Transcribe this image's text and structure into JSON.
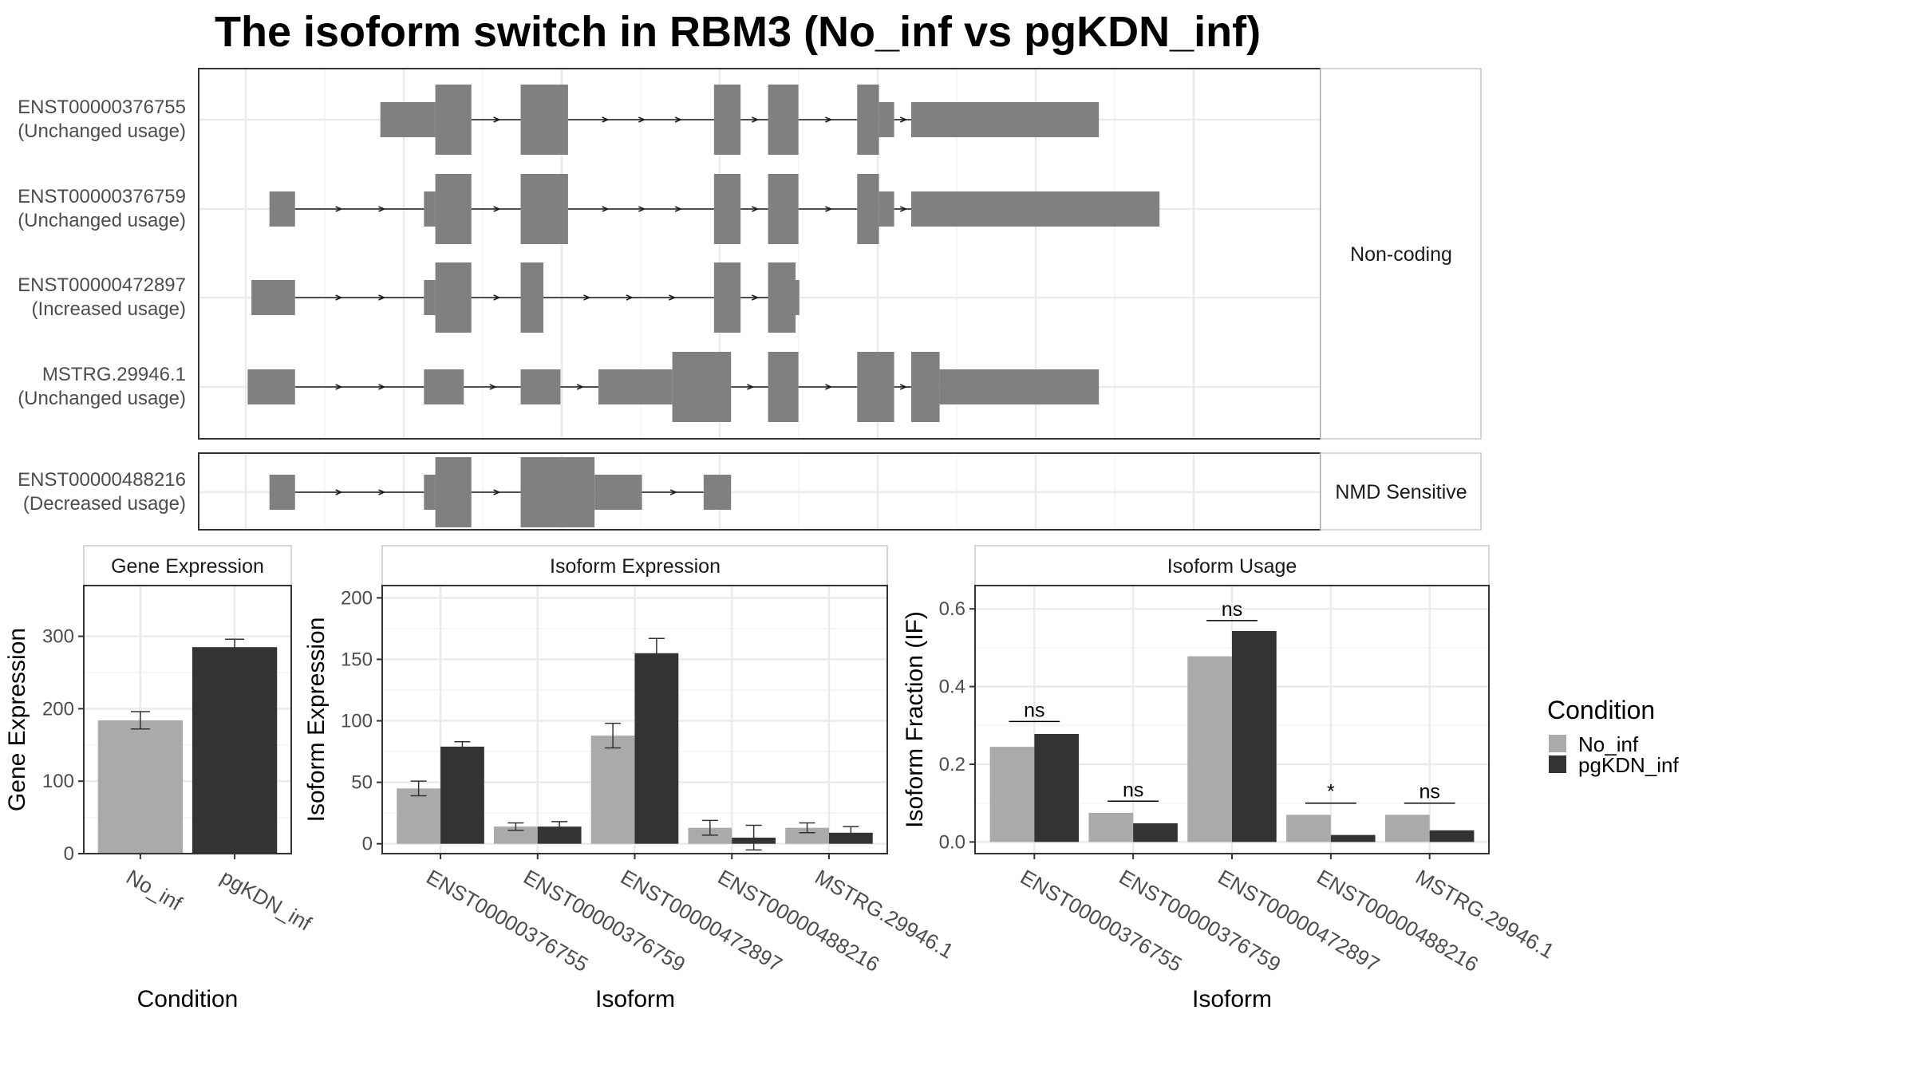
{
  "title": "The isoform switch in RBM3 (No_inf vs pgKDN_inf)",
  "colors": {
    "exon": "#808080",
    "no_inf": "#aaaaaa",
    "pgkdn_inf": "#333333",
    "grid": "#ebebeb",
    "panel_border": "#333333",
    "strip_border": "#c8c8c8"
  },
  "transcript_structures": {
    "coord_range": [
      0,
      1000
    ],
    "facets": [
      {
        "label": "Non-coding",
        "tracks": [
          {
            "id": "ENST00000376755",
            "usage": "(Unchanged usage)",
            "exons": [
              [
                142,
                200,
                "utr"
              ],
              [
                200,
                238,
                "cds"
              ],
              [
                290,
                340,
                "cds"
              ],
              [
                494,
                522,
                "cds"
              ],
              [
                551,
                583,
                "cds"
              ],
              [
                645,
                668,
                "cds"
              ],
              [
                668,
                684,
                "utr"
              ],
              [
                702,
                900,
                "utr"
              ]
            ]
          },
          {
            "id": "ENST00000376759",
            "usage": "(Unchanged usage)",
            "exons": [
              [
                25,
                52,
                "utr"
              ],
              [
                188,
                200,
                "utr"
              ],
              [
                200,
                238,
                "cds"
              ],
              [
                290,
                340,
                "cds"
              ],
              [
                494,
                522,
                "cds"
              ],
              [
                551,
                583,
                "cds"
              ],
              [
                645,
                668,
                "cds"
              ],
              [
                668,
                684,
                "utr"
              ],
              [
                702,
                964,
                "utr"
              ]
            ]
          },
          {
            "id": "ENST00000472897",
            "usage": "(Increased usage)",
            "exons": [
              [
                6,
                52,
                "utr"
              ],
              [
                188,
                200,
                "utr"
              ],
              [
                200,
                238,
                "cds"
              ],
              [
                290,
                314,
                "cds"
              ],
              [
                494,
                522,
                "cds"
              ],
              [
                551,
                580,
                "cds"
              ],
              [
                580,
                584,
                "utr"
              ]
            ]
          },
          {
            "id": "MSTRG.29946.1",
            "usage": "(Unchanged usage)",
            "exons": [
              [
                2,
                52,
                "utr"
              ],
              [
                188,
                230,
                "utr"
              ],
              [
                290,
                332,
                "utr"
              ],
              [
                372,
                450,
                "utr"
              ],
              [
                450,
                512,
                "cds"
              ],
              [
                551,
                583,
                "cds"
              ],
              [
                645,
                684,
                "cds"
              ],
              [
                702,
                732,
                "cds"
              ],
              [
                732,
                900,
                "utr"
              ]
            ]
          }
        ]
      },
      {
        "label": "NMD Sensitive",
        "tracks": [
          {
            "id": "ENST00000488216",
            "usage": "(Decreased usage)",
            "exons": [
              [
                25,
                52,
                "utr"
              ],
              [
                188,
                200,
                "utr"
              ],
              [
                200,
                238,
                "cds"
              ],
              [
                290,
                368,
                "cds"
              ],
              [
                368,
                418,
                "utr"
              ],
              [
                483,
                512,
                "utr"
              ]
            ]
          }
        ]
      }
    ]
  },
  "chart_data": [
    {
      "type": "bar",
      "strip": "Gene Expression",
      "xlabel": "Condition",
      "ylabel": "Gene Expression",
      "ylim": [
        0,
        370
      ],
      "yticks": [
        0,
        100,
        200,
        300
      ],
      "categories": [
        "No_inf",
        "pgKDN_inf"
      ],
      "values": [
        184,
        285
      ],
      "errors": [
        12,
        11
      ]
    },
    {
      "type": "bar",
      "strip": "Isoform Expression",
      "xlabel": "Isoform",
      "ylabel": "Isoform Expression",
      "ylim": [
        -8,
        210
      ],
      "yticks": [
        0,
        50,
        100,
        150,
        200
      ],
      "categories": [
        "ENST00000376755",
        "ENST00000376759",
        "ENST00000472897",
        "ENST00000488216",
        "MSTRG.29946.1"
      ],
      "series": [
        {
          "name": "No_inf",
          "values": [
            45,
            14,
            88,
            13,
            13
          ],
          "errors": [
            6,
            3,
            10,
            6,
            4
          ]
        },
        {
          "name": "pgKDN_inf",
          "values": [
            79,
            14,
            155,
            5,
            9
          ],
          "errors": [
            4,
            4,
            12,
            10,
            5
          ]
        }
      ]
    },
    {
      "type": "bar",
      "strip": "Isoform Usage",
      "xlabel": "Isoform",
      "ylabel": "Isoform Fraction (IF)",
      "ylim": [
        -0.03,
        0.66
      ],
      "yticks": [
        0.0,
        0.2,
        0.4,
        0.6
      ],
      "ytick_labels": [
        "0.0",
        "0.2",
        "0.4",
        "0.6"
      ],
      "categories": [
        "ENST00000376755",
        "ENST00000376759",
        "ENST00000472897",
        "ENST00000488216",
        "MSTRG.29946.1"
      ],
      "series": [
        {
          "name": "No_inf",
          "values": [
            0.245,
            0.075,
            0.478,
            0.07,
            0.07
          ]
        },
        {
          "name": "pgKDN_inf",
          "values": [
            0.278,
            0.048,
            0.543,
            0.018,
            0.03
          ]
        }
      ],
      "significance": [
        "ns",
        "ns",
        "ns",
        "*",
        "ns"
      ],
      "significance_level": [
        0.31,
        0.105,
        0.57,
        0.1,
        0.1
      ]
    }
  ],
  "legend": {
    "title": "Condition",
    "items": [
      {
        "label": "No_inf",
        "color": "#aaaaaa"
      },
      {
        "label": "pgKDN_inf",
        "color": "#333333"
      }
    ]
  }
}
